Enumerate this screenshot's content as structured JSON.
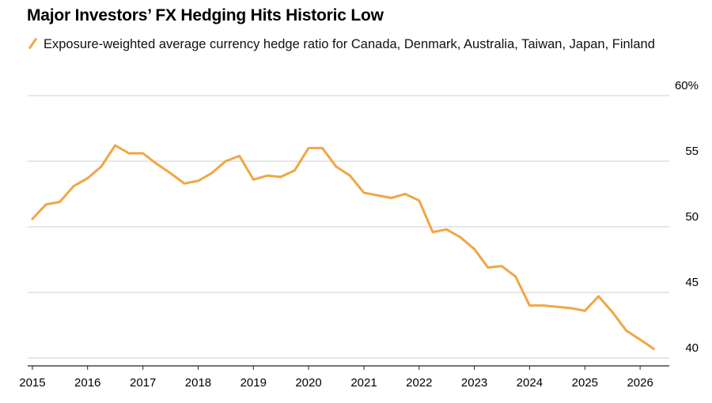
{
  "chart_data": {
    "type": "line",
    "title": "Major Investors’ FX Hedging Hits Historic Low",
    "legend": "Exposure-weighted average currency hedge ratio for Canada, Denmark, Australia, Taiwan, Japan, Finland",
    "series": [
      {
        "name": "Exposure-weighted average currency hedge ratio for Canada, Denmark, Australia, Taiwan, Japan, Finland",
        "color": "#f0a645",
        "points": [
          [
            "2015-01-01",
            50.6
          ],
          [
            "2015-04-01",
            51.7
          ],
          [
            "2015-07-01",
            51.9
          ],
          [
            "2015-10-01",
            53.1
          ],
          [
            "2016-01-01",
            53.7
          ],
          [
            "2016-04-01",
            54.6
          ],
          [
            "2016-07-01",
            56.2
          ],
          [
            "2016-10-01",
            55.6
          ],
          [
            "2017-01-01",
            55.6
          ],
          [
            "2017-04-01",
            54.8
          ],
          [
            "2017-07-01",
            54.1
          ],
          [
            "2017-10-01",
            53.3
          ],
          [
            "2018-01-01",
            53.5
          ],
          [
            "2018-04-01",
            54.1
          ],
          [
            "2018-07-01",
            55.0
          ],
          [
            "2018-10-01",
            55.4
          ],
          [
            "2019-01-01",
            53.6
          ],
          [
            "2019-04-01",
            53.9
          ],
          [
            "2019-07-01",
            53.8
          ],
          [
            "2019-10-01",
            54.3
          ],
          [
            "2020-01-01",
            56.0
          ],
          [
            "2020-04-01",
            56.0
          ],
          [
            "2020-07-01",
            54.6
          ],
          [
            "2020-10-01",
            53.9
          ],
          [
            "2021-01-01",
            52.6
          ],
          [
            "2021-04-01",
            52.4
          ],
          [
            "2021-07-01",
            52.2
          ],
          [
            "2021-10-01",
            52.5
          ],
          [
            "2022-01-01",
            52.0
          ],
          [
            "2022-04-01",
            49.6
          ],
          [
            "2022-07-01",
            49.8
          ],
          [
            "2022-10-01",
            49.2
          ],
          [
            "2023-01-01",
            48.3
          ],
          [
            "2023-04-01",
            46.9
          ],
          [
            "2023-07-01",
            47.0
          ],
          [
            "2023-10-01",
            46.2
          ],
          [
            "2024-01-01",
            44.0
          ],
          [
            "2024-04-01",
            44.0
          ],
          [
            "2024-07-01",
            43.9
          ],
          [
            "2024-10-01",
            43.8
          ],
          [
            "2025-01-01",
            43.6
          ],
          [
            "2025-04-01",
            44.7
          ],
          [
            "2025-07-01",
            43.5
          ],
          [
            "2025-10-01",
            42.1
          ],
          [
            "2026-01-01",
            41.4
          ],
          [
            "2026-04-01",
            40.7
          ]
        ]
      }
    ],
    "x_ticks": [
      "2015",
      "2016",
      "2017",
      "2018",
      "2019",
      "2020",
      "2021",
      "2022",
      "2023",
      "2024",
      "2025",
      "2026"
    ],
    "y_ticks": [
      {
        "value": 40,
        "label": "40"
      },
      {
        "value": 45,
        "label": "45"
      },
      {
        "value": 50,
        "label": "50"
      },
      {
        "value": 55,
        "label": "55"
      },
      {
        "value": 60,
        "label": "60%"
      }
    ],
    "xlim": [
      "2014-12-01",
      "2026-06-01"
    ],
    "ylim": [
      39.4,
      60
    ],
    "grid": "horizontal",
    "colors": {
      "line": "#f0a645",
      "grid": "#cfcfcf",
      "baseline": "#222222"
    }
  }
}
